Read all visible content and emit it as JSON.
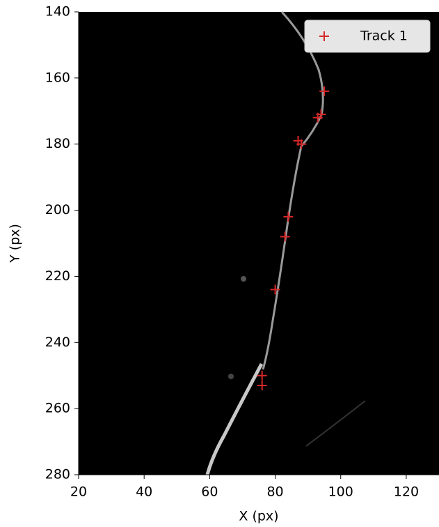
{
  "chart_data": {
    "type": "scatter",
    "x_label": "X (px)",
    "y_label": "Y (px)",
    "xlim": [
      20,
      130
    ],
    "ylim": [
      280,
      140
    ],
    "xticks": [
      20,
      40,
      60,
      80,
      100,
      120
    ],
    "yticks": [
      140,
      160,
      180,
      200,
      220,
      240,
      260,
      280
    ],
    "marker": "+",
    "legend": "upper right",
    "series": [
      {
        "name": "Track 1",
        "color": "#d62728",
        "x": [
          95,
          94,
          93,
          88,
          87,
          84,
          83,
          80,
          76,
          76
        ],
        "values": [
          164,
          171,
          172,
          180,
          179,
          202,
          208,
          224,
          250,
          253
        ]
      }
    ]
  }
}
